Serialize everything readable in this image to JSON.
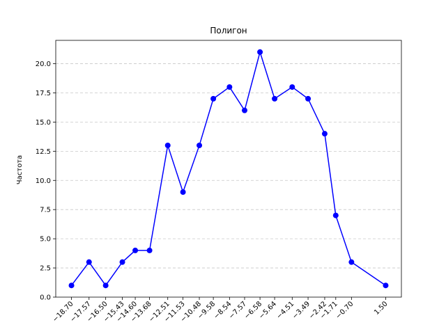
{
  "chart_data": {
    "type": "line",
    "title": "Полигон",
    "xlabel": "",
    "ylabel": "Частота",
    "x": [
      -18.7,
      -17.57,
      -16.5,
      -15.43,
      -14.6,
      -13.68,
      -12.51,
      -11.53,
      -10.48,
      -9.58,
      -8.54,
      -7.57,
      -6.58,
      -5.64,
      -4.51,
      -3.49,
      -2.42,
      -1.71,
      -0.7,
      1.5
    ],
    "x_tick_labels": [
      "−18.70",
      "−17.57",
      "−16.50",
      "−15.43",
      "−14.60",
      "−13.68",
      "−12.51",
      "−11.53",
      "−10.48",
      "−9.58",
      "−8.54",
      "−7.57",
      "−6.58",
      "−5.64",
      "−4.51",
      "−3.49",
      "−2.42",
      "−1.71",
      "−0.70",
      "1.50"
    ],
    "series": [
      {
        "values": [
          1,
          3,
          1,
          3,
          4,
          4,
          13,
          9,
          13,
          17,
          18,
          16,
          21,
          17,
          18,
          17,
          14,
          7,
          3,
          1
        ]
      }
    ],
    "xlim": [
      -19.71,
      2.51
    ],
    "ylim": [
      0,
      22
    ],
    "y_ticks": [
      0,
      2.5,
      5,
      7.5,
      10,
      12.5,
      15,
      17.5,
      20
    ],
    "y_tick_labels": [
      "0.0",
      "2.5",
      "5.0",
      "7.5",
      "10.0",
      "12.5",
      "15.0",
      "17.5",
      "20.0"
    ],
    "grid": "y-dashed",
    "legend": "none",
    "colors": {
      "line": "#0000ff",
      "marker": "#0000ff",
      "grid": "#c8c8c8",
      "axis": "#000000"
    }
  }
}
